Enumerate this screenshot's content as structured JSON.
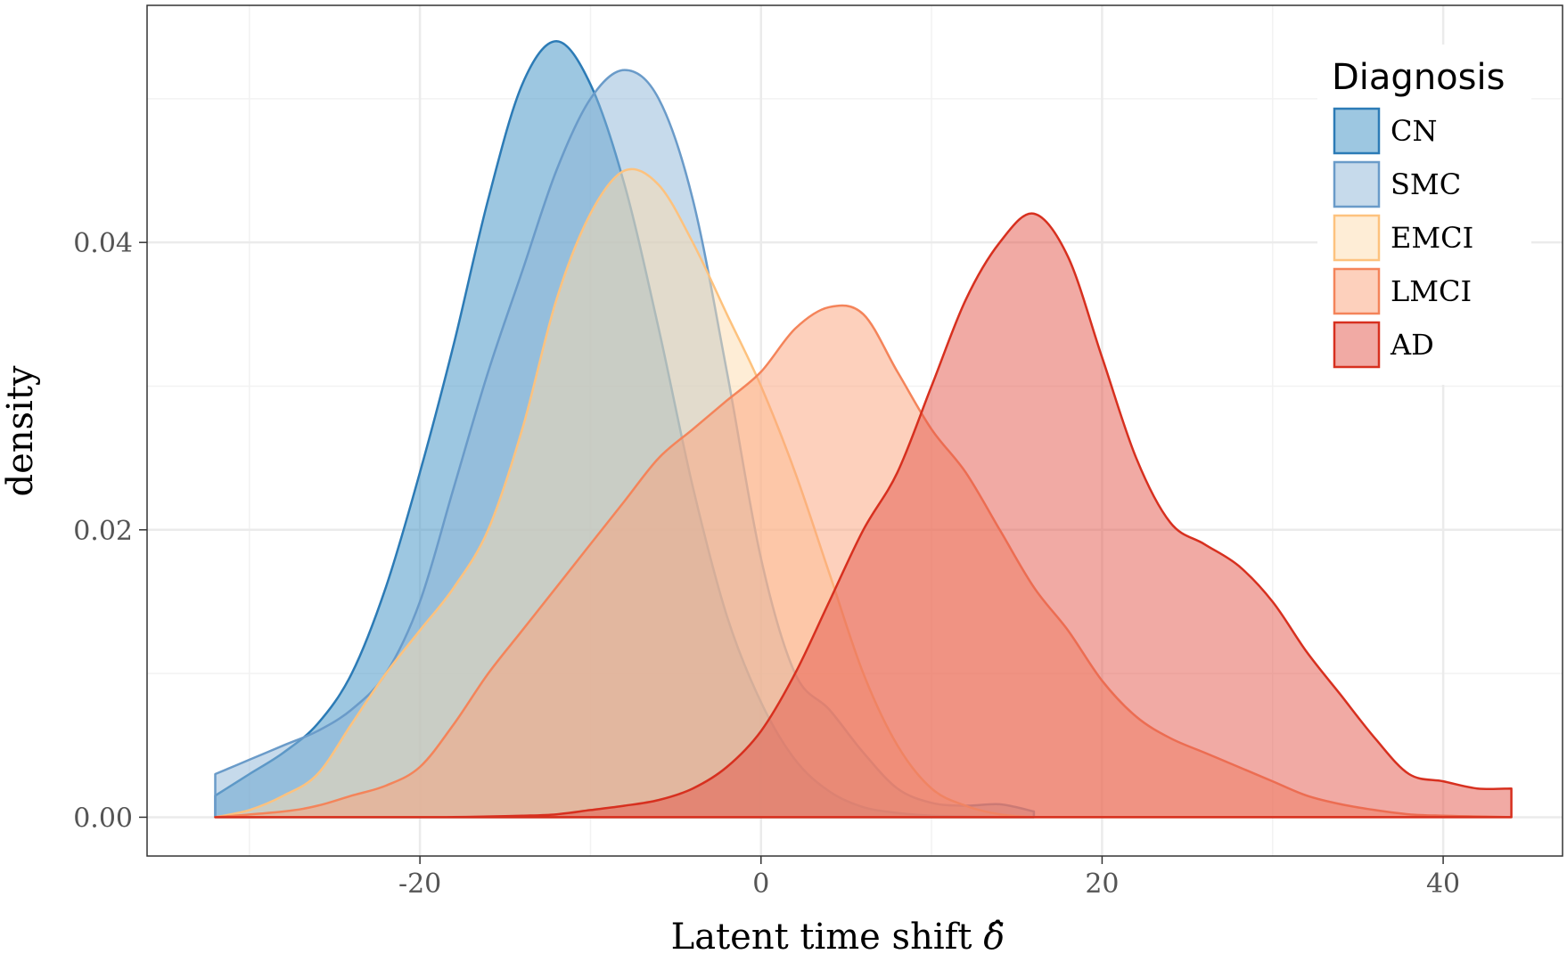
{
  "chart_data": {
    "type": "area",
    "title": "",
    "xlabel": "Latent time shift",
    "xlabel_symbol": "δ̂",
    "ylabel": "density",
    "xlim": [
      -36,
      47
    ],
    "ylim": [
      -0.0027,
      0.0565
    ],
    "x_ticks": [
      -20,
      0,
      20,
      40
    ],
    "x_tick_labels": [
      "-20",
      "0",
      "20",
      "40"
    ],
    "y_ticks": [
      0.0,
      0.02,
      0.04
    ],
    "y_tick_labels": [
      "0.00",
      "0.02",
      "0.04"
    ],
    "grid": true,
    "legend": {
      "title": "Diagnosis",
      "position": "top-right"
    },
    "series": [
      {
        "name": "CN",
        "fill": "#3C8FC4",
        "stroke": "#2C7BB6",
        "x": [
          -32,
          -30,
          -28,
          -26,
          -24,
          -22,
          -20,
          -18,
          -16,
          -14,
          -12,
          -10,
          -8,
          -6,
          -4,
          -2,
          0,
          2,
          4,
          6,
          8,
          10,
          12,
          14,
          16
        ],
        "y": [
          0.0015,
          0.003,
          0.0045,
          0.0065,
          0.01,
          0.016,
          0.024,
          0.033,
          0.043,
          0.051,
          0.054,
          0.051,
          0.044,
          0.034,
          0.023,
          0.014,
          0.008,
          0.004,
          0.0018,
          0.0007,
          0.0003,
          0.0001,
          5e-05,
          2e-05,
          0.0
        ]
      },
      {
        "name": "SMC",
        "fill": "#8DB5D8",
        "stroke": "#6A9BC9",
        "x": [
          -32,
          -30,
          -28,
          -26,
          -24,
          -22,
          -20,
          -18,
          -16,
          -14,
          -12,
          -10,
          -8,
          -6,
          -4,
          -2,
          0,
          2,
          4,
          6,
          8,
          10,
          12,
          14,
          16
        ],
        "y": [
          0.003,
          0.004,
          0.005,
          0.006,
          0.0075,
          0.01,
          0.015,
          0.023,
          0.031,
          0.038,
          0.045,
          0.05,
          0.052,
          0.05,
          0.043,
          0.031,
          0.018,
          0.01,
          0.0075,
          0.0045,
          0.002,
          0.001,
          0.0008,
          0.0009,
          0.0004
        ]
      },
      {
        "name": "EMCI",
        "fill": "#FDDBAE",
        "stroke": "#FDC27E",
        "x": [
          -32,
          -30,
          -28,
          -26,
          -24,
          -22,
          -20,
          -18,
          -16,
          -14,
          -12,
          -10,
          -8,
          -6,
          -4,
          -2,
          0,
          2,
          4,
          6,
          8,
          10,
          12,
          14,
          16
        ],
        "y": [
          0.0,
          0.0005,
          0.0015,
          0.003,
          0.0065,
          0.01,
          0.013,
          0.016,
          0.02,
          0.027,
          0.036,
          0.042,
          0.045,
          0.044,
          0.04,
          0.035,
          0.03,
          0.024,
          0.017,
          0.01,
          0.005,
          0.002,
          0.0008,
          0.0002,
          0.0
        ]
      },
      {
        "name": "LMCI",
        "fill": "#FBA27A",
        "stroke": "#F4845A",
        "x": [
          -32,
          -28,
          -26,
          -24,
          -22,
          -20,
          -18,
          -16,
          -14,
          -12,
          -10,
          -8,
          -6,
          -4,
          -2,
          0,
          2,
          4,
          6,
          8,
          10,
          12,
          14,
          16,
          18,
          20,
          22,
          24,
          26,
          28,
          30,
          32,
          34,
          36,
          38,
          40,
          42,
          44
        ],
        "y": [
          0.0,
          0.0004,
          0.0008,
          0.0015,
          0.0022,
          0.0035,
          0.0065,
          0.01,
          0.013,
          0.016,
          0.019,
          0.022,
          0.025,
          0.027,
          0.029,
          0.031,
          0.034,
          0.0355,
          0.035,
          0.031,
          0.027,
          0.024,
          0.02,
          0.016,
          0.013,
          0.0095,
          0.007,
          0.0055,
          0.0045,
          0.0035,
          0.0025,
          0.0015,
          0.0009,
          0.0005,
          0.0002,
          0.0001,
          5e-05,
          0.0
        ]
      },
      {
        "name": "AD",
        "fill": "#E4554A",
        "stroke": "#D7301F",
        "x": [
          -32,
          -20,
          -16,
          -14,
          -12,
          -10,
          -8,
          -6,
          -4,
          -2,
          0,
          2,
          4,
          6,
          8,
          10,
          12,
          14,
          16,
          18,
          20,
          22,
          24,
          26,
          28,
          30,
          32,
          34,
          36,
          38,
          40,
          42,
          44
        ],
        "y": [
          0.0,
          0.0,
          5e-05,
          0.0001,
          0.0002,
          0.0005,
          0.0008,
          0.0012,
          0.002,
          0.0035,
          0.006,
          0.01,
          0.015,
          0.02,
          0.024,
          0.03,
          0.036,
          0.04,
          0.042,
          0.039,
          0.032,
          0.025,
          0.0205,
          0.019,
          0.0175,
          0.015,
          0.0115,
          0.0085,
          0.0055,
          0.003,
          0.0025,
          0.002,
          0.002
        ]
      }
    ]
  }
}
